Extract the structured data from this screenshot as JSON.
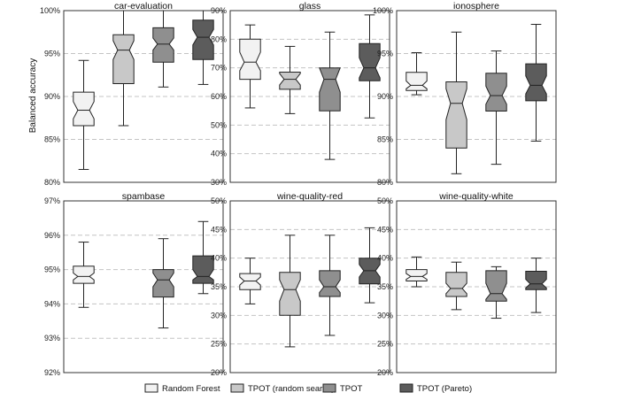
{
  "figure": {
    "ylabel": "Balanced accuracy",
    "legend": [
      {
        "label": "Random Forest",
        "color": "#f2f2f2"
      },
      {
        "label": "TPOT (random search)",
        "color": "#c8c8c8"
      },
      {
        "label": "TPOT",
        "color": "#8f8f8f"
      },
      {
        "label": "TPOT (Pareto)",
        "color": "#5c5c5c"
      }
    ]
  },
  "chart_data": [
    {
      "type": "box",
      "title": "car-evaluation",
      "ylim": [
        80,
        100
      ],
      "yticks": [
        80,
        85,
        90,
        95,
        100
      ],
      "series": [
        {
          "name": "Random Forest",
          "whisker_low": 81.5,
          "q1": 86.6,
          "median": 88.4,
          "q3": 90.5,
          "whisker_high": 94.2,
          "notch_low": 87.4,
          "notch_high": 89.4
        },
        {
          "name": "TPOT (random search)",
          "whisker_low": 86.6,
          "q1": 91.5,
          "median": 95.4,
          "q3": 97.2,
          "whisker_high": 100,
          "notch_low": 94.3,
          "notch_high": 96.5
        },
        {
          "name": "TPOT",
          "whisker_low": 91.1,
          "q1": 94.0,
          "median": 96.1,
          "q3": 98.0,
          "whisker_high": 100,
          "notch_low": 95.4,
          "notch_high": 96.8
        },
        {
          "name": "TPOT (Pareto)",
          "whisker_low": 91.4,
          "q1": 94.3,
          "median": 96.9,
          "q3": 98.9,
          "whisker_high": 100,
          "notch_low": 96.0,
          "notch_high": 97.8
        }
      ]
    },
    {
      "type": "box",
      "title": "glass",
      "ylim": [
        30,
        90
      ],
      "yticks": [
        30,
        40,
        50,
        60,
        70,
        80,
        90
      ],
      "series": [
        {
          "name": "Random Forest",
          "whisker_low": 56.0,
          "q1": 66.0,
          "median": 72.0,
          "q3": 80.0,
          "whisker_high": 85.0,
          "notch_low": 69.0,
          "notch_high": 75.5
        },
        {
          "name": "TPOT (random search)",
          "whisker_low": 54.0,
          "q1": 62.5,
          "median": 66.0,
          "q3": 68.5,
          "whisker_high": 77.5,
          "notch_low": 64.0,
          "notch_high": 68.0
        },
        {
          "name": "TPOT",
          "whisker_low": 38.0,
          "q1": 55.0,
          "median": 66.0,
          "q3": 70.0,
          "whisker_high": 82.5,
          "notch_low": 61.5,
          "notch_high": 70.0
        },
        {
          "name": "TPOT (Pareto)",
          "whisker_low": 52.5,
          "q1": 65.5,
          "median": 70.0,
          "q3": 78.5,
          "whisker_high": 88.5,
          "notch_low": 66.5,
          "notch_high": 73.5
        }
      ]
    },
    {
      "type": "box",
      "title": "ionosphere",
      "ylim": [
        80,
        100
      ],
      "yticks": [
        80,
        85,
        90,
        95,
        100
      ],
      "series": [
        {
          "name": "Random Forest",
          "whisker_low": 90.2,
          "q1": 90.7,
          "median": 91.3,
          "q3": 92.8,
          "whisker_high": 95.1,
          "notch_low": 90.9,
          "notch_high": 91.8
        },
        {
          "name": "TPOT (random search)",
          "whisker_low": 81.0,
          "q1": 84.0,
          "median": 89.2,
          "q3": 91.7,
          "whisker_high": 97.5,
          "notch_low": 87.3,
          "notch_high": 90.9
        },
        {
          "name": "TPOT",
          "whisker_low": 82.1,
          "q1": 88.3,
          "median": 90.1,
          "q3": 92.7,
          "whisker_high": 95.3,
          "notch_low": 89.1,
          "notch_high": 91.2
        },
        {
          "name": "TPOT (Pareto)",
          "whisker_low": 84.8,
          "q1": 89.5,
          "median": 91.3,
          "q3": 93.8,
          "whisker_high": 98.4,
          "notch_low": 90.3,
          "notch_high": 92.4
        }
      ]
    },
    {
      "type": "box",
      "title": "spambase",
      "ylim": [
        92,
        97
      ],
      "yticks": [
        92,
        93,
        94,
        95,
        96,
        97
      ],
      "series": [
        {
          "name": "Random Forest",
          "whisker_low": 93.9,
          "q1": 94.6,
          "median": 94.8,
          "q3": 95.1,
          "whisker_high": 95.8,
          "notch_low": 94.7,
          "notch_high": 94.9
        },
        {
          "name": "TPOT (random search)",
          "whisker_low": null,
          "q1": null,
          "median": null,
          "q3": null,
          "whisker_high": null
        },
        {
          "name": "TPOT",
          "whisker_low": 93.3,
          "q1": 94.2,
          "median": 94.7,
          "q3": 95.0,
          "whisker_high": 95.9,
          "notch_low": 94.5,
          "notch_high": 94.9
        },
        {
          "name": "TPOT (Pareto)",
          "whisker_low": 94.3,
          "q1": 94.6,
          "median": 94.8,
          "q3": 95.4,
          "whisker_high": 96.4,
          "notch_low": 94.7,
          "notch_high": 95.0
        }
      ]
    },
    {
      "type": "box",
      "title": "wine-quality-red",
      "ylim": [
        20,
        50
      ],
      "yticks": [
        20,
        25,
        30,
        35,
        40,
        45,
        50
      ],
      "series": [
        {
          "name": "Random Forest",
          "whisker_low": 32.0,
          "q1": 34.5,
          "median": 36.0,
          "q3": 37.3,
          "whisker_high": 40.0,
          "notch_low": 35.3,
          "notch_high": 36.7
        },
        {
          "name": "TPOT (random search)",
          "whisker_low": 24.5,
          "q1": 30.0,
          "median": 34.5,
          "q3": 37.5,
          "whisker_high": 44.0,
          "notch_low": 32.5,
          "notch_high": 36.2
        },
        {
          "name": "TPOT",
          "whisker_low": 26.5,
          "q1": 33.3,
          "median": 35.0,
          "q3": 37.8,
          "whisker_high": 44.0,
          "notch_low": 34.0,
          "notch_high": 36.2
        },
        {
          "name": "TPOT (Pareto)",
          "whisker_low": 32.2,
          "q1": 35.5,
          "median": 37.8,
          "q3": 40.0,
          "whisker_high": 45.3,
          "notch_low": 36.7,
          "notch_high": 38.9
        }
      ]
    },
    {
      "type": "box",
      "title": "wine-quality-white",
      "ylim": [
        20,
        50
      ],
      "yticks": [
        20,
        25,
        30,
        35,
        40,
        45,
        50
      ],
      "series": [
        {
          "name": "Random Forest",
          "whisker_low": 35.0,
          "q1": 36.0,
          "median": 36.8,
          "q3": 38.0,
          "whisker_high": 40.2,
          "notch_low": 36.3,
          "notch_high": 37.3
        },
        {
          "name": "TPOT (random search)",
          "whisker_low": 31.0,
          "q1": 33.3,
          "median": 34.7,
          "q3": 37.5,
          "whisker_high": 39.3,
          "notch_low": 33.8,
          "notch_high": 35.6
        },
        {
          "name": "TPOT",
          "whisker_low": 29.5,
          "q1": 32.5,
          "median": 33.8,
          "q3": 37.8,
          "whisker_high": 38.5,
          "notch_low": 32.8,
          "notch_high": 35.6
        },
        {
          "name": "TPOT (Pareto)",
          "whisker_low": 30.5,
          "q1": 34.5,
          "median": 35.5,
          "q3": 37.7,
          "whisker_high": 40.0,
          "notch_low": 34.8,
          "notch_high": 36.3
        }
      ]
    }
  ]
}
